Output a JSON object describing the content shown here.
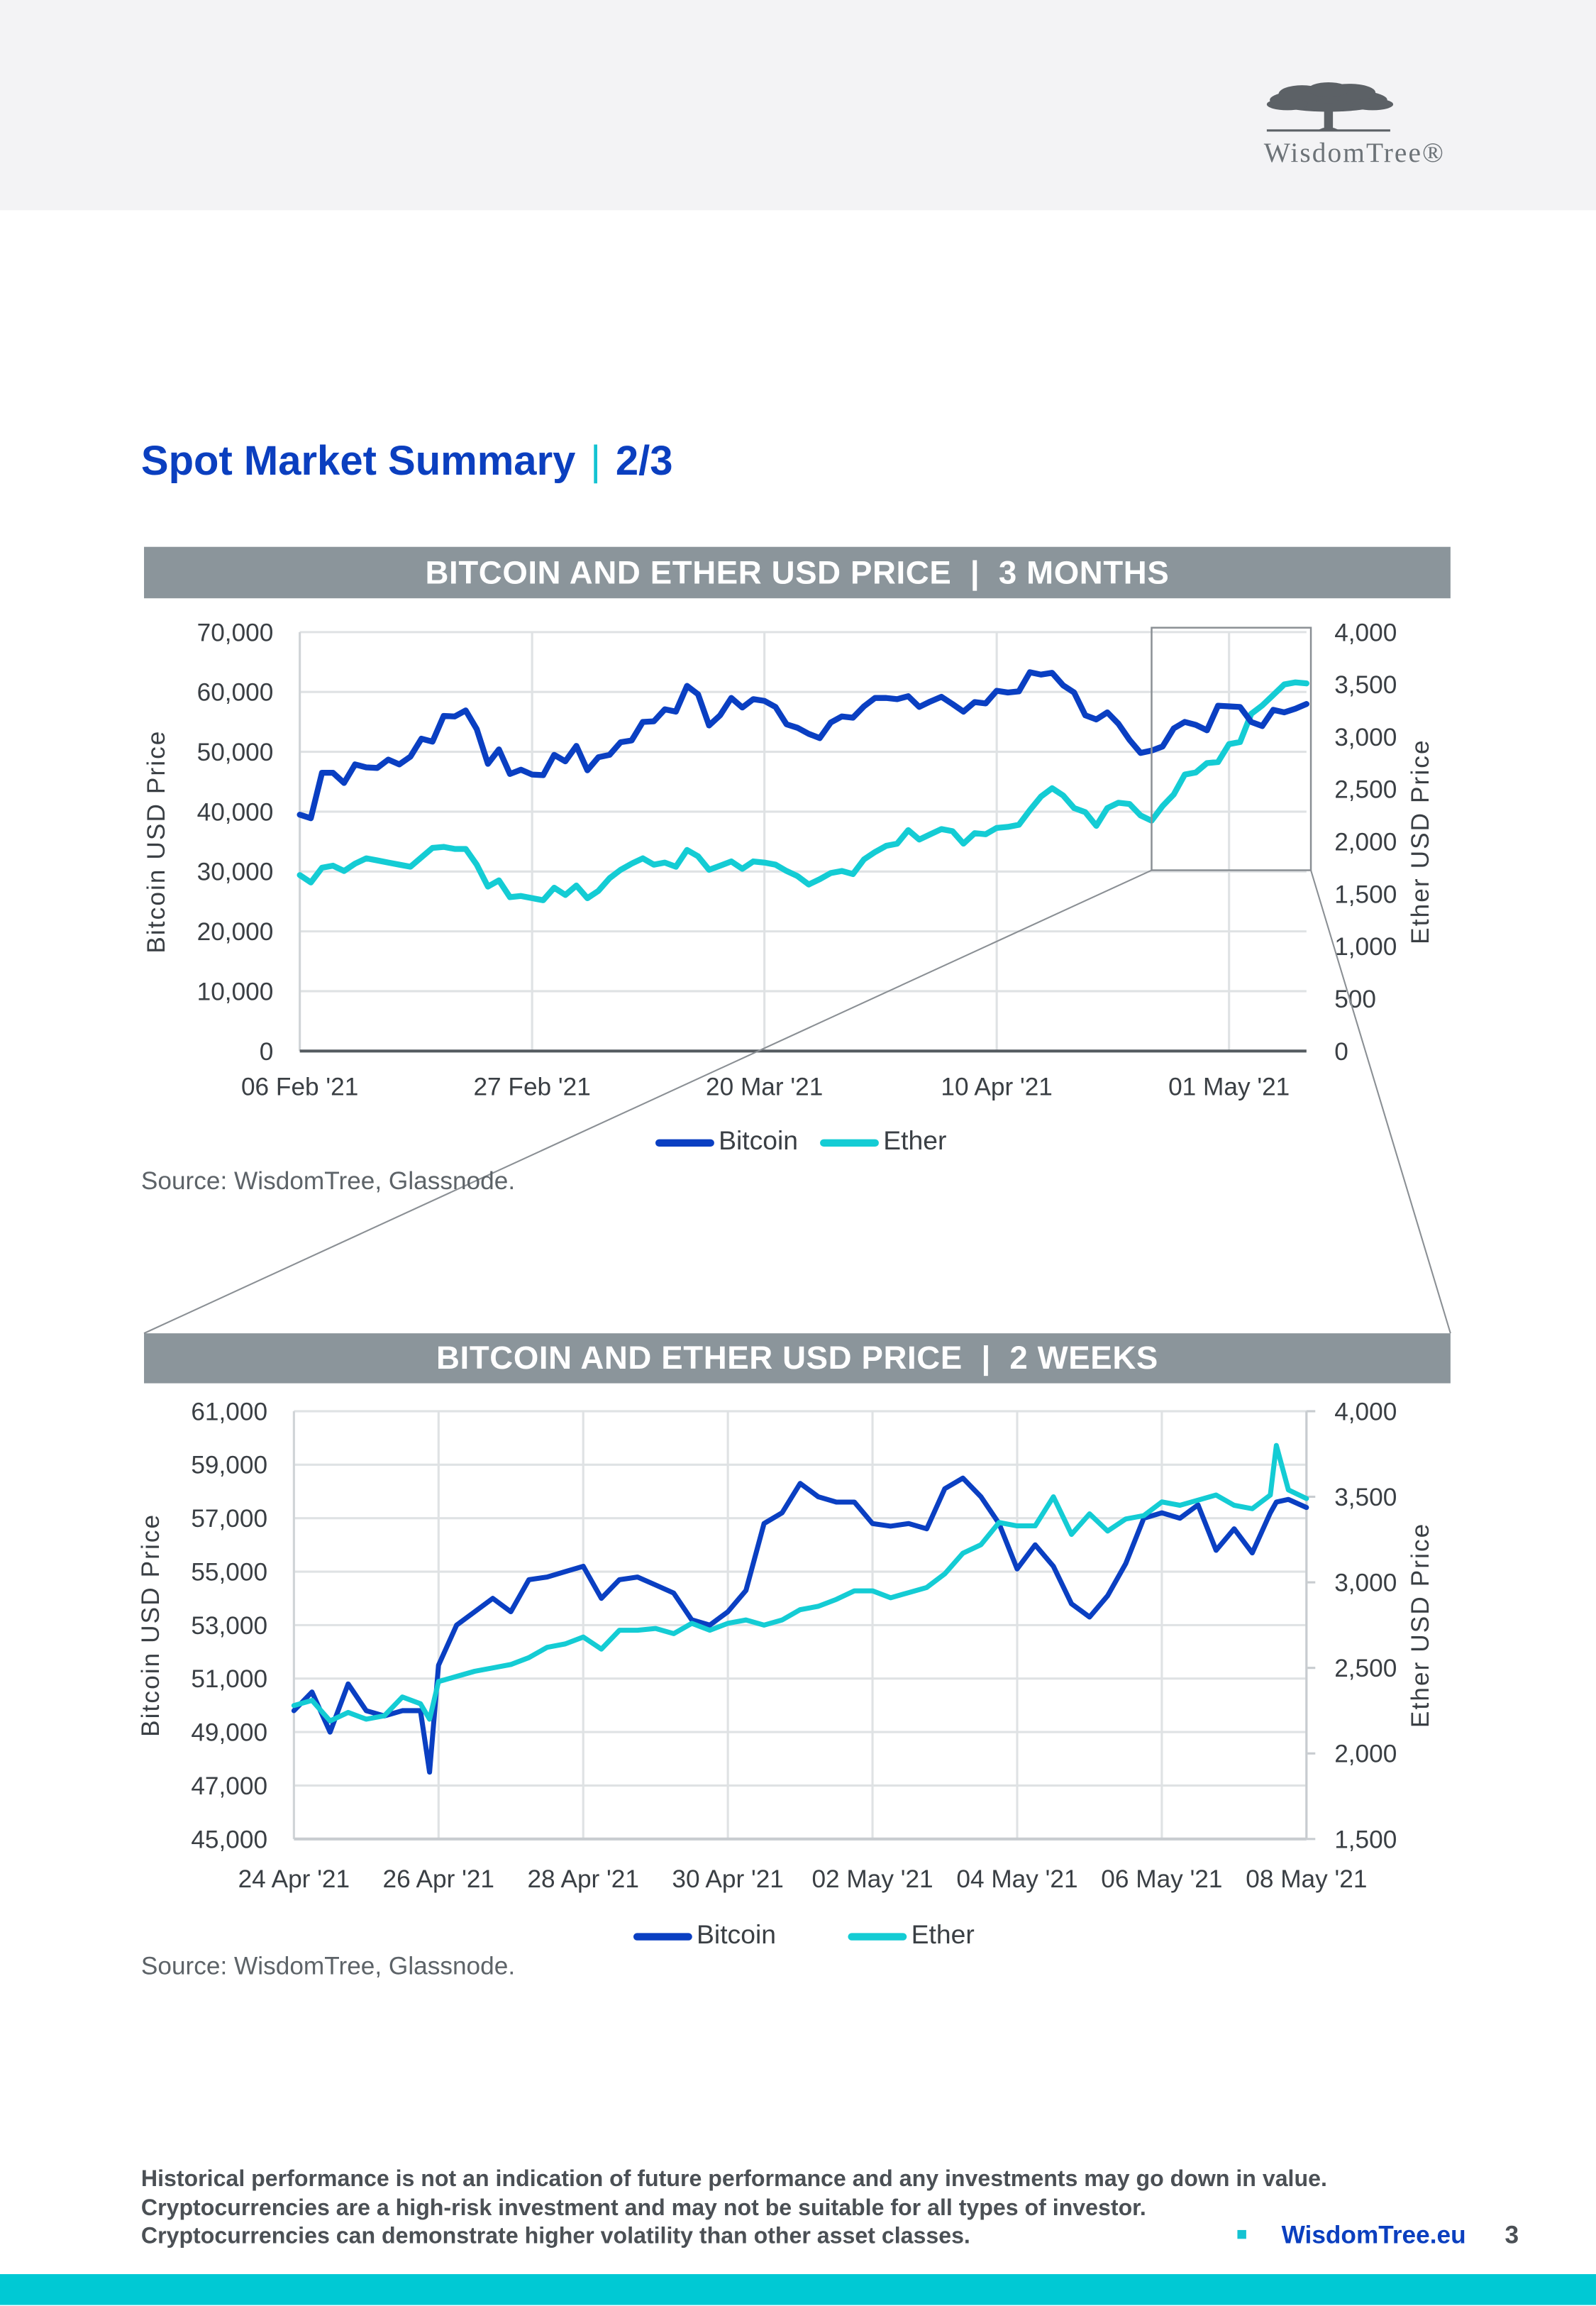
{
  "header": {
    "logo_text": "WisdomTree®",
    "logo_icon": "tree-icon"
  },
  "title": {
    "main": "Spot Market Summary",
    "separator": "|",
    "page": "2/3"
  },
  "colors": {
    "bitcoin": "#0a3fc2",
    "ether": "#14ccd4",
    "banner": "#8b959b",
    "accent": "#00c9d4",
    "title": "#0b3fbf"
  },
  "chart1": {
    "banner": "BITCOIN AND ETHER USD PRICE  |  3 MONTHS",
    "source": "Source: WisdomTree, Glassnode."
  },
  "chart2": {
    "banner": "BITCOIN AND ETHER USD PRICE  |  2 WEEKS",
    "source": "Source: WisdomTree, Glassnode."
  },
  "chart_data": [
    {
      "type": "line",
      "title": "BITCOIN AND ETHER USD PRICE | 3 MONTHS",
      "ylabel": "Bitcoin USD Price",
      "y2label": "Ether USD Price",
      "ylim": [
        0,
        70000
      ],
      "y2lim": [
        0,
        4000
      ],
      "yticks": [
        "0",
        "10,000",
        "20,000",
        "30,000",
        "40,000",
        "50,000",
        "60,000",
        "70,000"
      ],
      "y2ticks": [
        "0",
        "500",
        "1,000",
        "1,500",
        "2,000",
        "2,500",
        "3,000",
        "3,500",
        "4,000"
      ],
      "xticks": [
        {
          "value": "2021-02-06",
          "label": "06 Feb '21"
        },
        {
          "value": "2021-02-27",
          "label": "27 Feb '21"
        },
        {
          "value": "2021-03-20",
          "label": "20 Mar '21"
        },
        {
          "value": "2021-04-10",
          "label": "10 Apr '21"
        },
        {
          "value": "2021-05-01",
          "label": "01 May '21"
        }
      ],
      "xlim": [
        "2021-02-06",
        "2021-05-08"
      ],
      "grid": true,
      "legend": "bottom",
      "series": [
        {
          "name": "Bitcoin",
          "axis": "left"
        },
        {
          "name": "Ether",
          "axis": "right"
        }
      ],
      "zoom_window": {
        "from": "2021-04-24",
        "to": "2021-05-08"
      },
      "rows": [
        [
          "2021-02-06",
          39500,
          1680
        ],
        [
          "2021-02-07",
          38900,
          1610
        ],
        [
          "2021-02-08",
          46500,
          1750
        ],
        [
          "2021-02-09",
          46500,
          1770
        ],
        [
          "2021-02-10",
          44800,
          1720
        ],
        [
          "2021-02-11",
          47900,
          1790
        ],
        [
          "2021-02-12",
          47400,
          1840
        ],
        [
          "2021-02-13",
          47300,
          1820
        ],
        [
          "2021-02-14",
          48700,
          1800
        ],
        [
          "2021-02-15",
          47900,
          1780
        ],
        [
          "2021-02-16",
          49200,
          1760
        ],
        [
          "2021-02-17",
          52200,
          1850
        ],
        [
          "2021-02-18",
          51700,
          1940
        ],
        [
          "2021-02-19",
          56000,
          1950
        ],
        [
          "2021-02-20",
          55900,
          1930
        ],
        [
          "2021-02-21",
          56900,
          1930
        ],
        [
          "2021-02-22",
          53800,
          1780
        ],
        [
          "2021-02-23",
          48000,
          1570
        ],
        [
          "2021-02-24",
          50400,
          1630
        ],
        [
          "2021-02-25",
          46300,
          1470
        ],
        [
          "2021-02-26",
          47000,
          1480
        ],
        [
          "2021-02-27",
          46200,
          1460
        ],
        [
          "2021-02-28",
          46100,
          1440
        ],
        [
          "2021-03-01",
          49500,
          1560
        ],
        [
          "2021-03-02",
          48400,
          1490
        ],
        [
          "2021-03-03",
          51000,
          1580
        ],
        [
          "2021-03-04",
          46900,
          1460
        ],
        [
          "2021-03-05",
          49100,
          1530
        ],
        [
          "2021-03-06",
          49500,
          1650
        ],
        [
          "2021-03-07",
          51600,
          1730
        ],
        [
          "2021-03-08",
          51900,
          1790
        ],
        [
          "2021-03-09",
          55000,
          1840
        ],
        [
          "2021-03-10",
          55100,
          1780
        ],
        [
          "2021-03-11",
          57100,
          1800
        ],
        [
          "2021-03-12",
          56700,
          1760
        ],
        [
          "2021-03-13",
          61000,
          1920
        ],
        [
          "2021-03-14",
          59600,
          1860
        ],
        [
          "2021-03-15",
          54400,
          1730
        ],
        [
          "2021-03-16",
          56100,
          1770
        ],
        [
          "2021-03-17",
          59000,
          1810
        ],
        [
          "2021-03-18",
          57400,
          1740
        ],
        [
          "2021-03-19",
          58800,
          1810
        ],
        [
          "2021-03-20",
          58500,
          1800
        ],
        [
          "2021-03-21",
          57500,
          1780
        ],
        [
          "2021-03-22",
          54600,
          1720
        ],
        [
          "2021-03-23",
          54000,
          1670
        ],
        [
          "2021-03-24",
          53000,
          1590
        ],
        [
          "2021-03-25",
          52300,
          1640
        ],
        [
          "2021-03-26",
          54900,
          1700
        ],
        [
          "2021-03-27",
          55900,
          1720
        ],
        [
          "2021-03-28",
          55700,
          1690
        ],
        [
          "2021-03-29",
          57600,
          1830
        ],
        [
          "2021-03-30",
          59000,
          1900
        ],
        [
          "2021-03-31",
          59000,
          1960
        ],
        [
          "2021-04-01",
          58800,
          1980
        ],
        [
          "2021-04-02",
          59300,
          2110
        ],
        [
          "2021-04-03",
          57500,
          2020
        ],
        [
          "2021-04-04",
          58400,
          2070
        ],
        [
          "2021-04-05",
          59200,
          2120
        ],
        [
          "2021-04-06",
          58000,
          2100
        ],
        [
          "2021-04-07",
          56700,
          1980
        ],
        [
          "2021-04-08",
          58300,
          2080
        ],
        [
          "2021-04-09",
          58100,
          2070
        ],
        [
          "2021-04-10",
          60200,
          2130
        ],
        [
          "2021-04-11",
          59900,
          2140
        ],
        [
          "2021-04-12",
          60100,
          2160
        ],
        [
          "2021-04-13",
          63300,
          2300
        ],
        [
          "2021-04-14",
          62900,
          2430
        ],
        [
          "2021-04-15",
          63200,
          2510
        ],
        [
          "2021-04-16",
          61100,
          2440
        ],
        [
          "2021-04-17",
          59900,
          2320
        ],
        [
          "2021-04-18",
          56100,
          2280
        ],
        [
          "2021-04-19",
          55400,
          2150
        ],
        [
          "2021-04-20",
          56600,
          2320
        ],
        [
          "2021-04-21",
          54700,
          2370
        ],
        [
          "2021-04-22",
          52000,
          2360
        ],
        [
          "2021-04-23",
          49800,
          2250
        ],
        [
          "2021-04-24",
          50200,
          2200
        ],
        [
          "2021-04-25",
          50900,
          2340
        ],
        [
          "2021-04-26",
          53900,
          2450
        ],
        [
          "2021-04-27",
          55000,
          2640
        ],
        [
          "2021-04-28",
          54500,
          2660
        ],
        [
          "2021-04-29",
          53600,
          2750
        ],
        [
          "2021-04-30",
          57700,
          2760
        ],
        [
          "2021-05-01",
          57600,
          2930
        ],
        [
          "2021-05-02",
          57500,
          2950
        ],
        [
          "2021-05-03",
          55000,
          3220
        ],
        [
          "2021-05-04",
          54300,
          3300
        ],
        [
          "2021-05-05",
          57000,
          3400
        ],
        [
          "2021-05-06",
          56600,
          3500
        ],
        [
          "2021-05-07",
          57200,
          3520
        ],
        [
          "2021-05-08",
          58000,
          3510
        ]
      ]
    },
    {
      "type": "line",
      "title": "BITCOIN AND ETHER USD PRICE | 2 WEEKS",
      "ylabel": "Bitcoin USD Price",
      "y2label": "Ether USD Price",
      "ylim": [
        45000,
        61000
      ],
      "y2lim": [
        1500,
        4000
      ],
      "yticks": [
        "45,000",
        "47,000",
        "49,000",
        "51,000",
        "53,000",
        "55,000",
        "57,000",
        "59,000",
        "61,000"
      ],
      "y2ticks": [
        "1,500",
        "2,000",
        "2,500",
        "3,000",
        "3,500",
        "4,000"
      ],
      "xticks": [
        {
          "value": "2021-04-24T00:00",
          "label": "24 Apr '21"
        },
        {
          "value": "2021-04-26T00:00",
          "label": "26 Apr '21"
        },
        {
          "value": "2021-04-28T00:00",
          "label": "28 Apr '21"
        },
        {
          "value": "2021-04-30T00:00",
          "label": "30 Apr '21"
        },
        {
          "value": "2021-05-02T00:00",
          "label": "02 May '21"
        },
        {
          "value": "2021-05-04T00:00",
          "label": "04 May '21"
        },
        {
          "value": "2021-05-06T00:00",
          "label": "06 May '21"
        },
        {
          "value": "2021-05-08T00:00",
          "label": "08 May '21"
        }
      ],
      "xlim": [
        "2021-04-24T00:00",
        "2021-05-08T00:00"
      ],
      "grid": true,
      "legend": "bottom",
      "series": [
        {
          "name": "Bitcoin",
          "axis": "left"
        },
        {
          "name": "Ether",
          "axis": "right"
        }
      ],
      "rows": [
        [
          "2021-04-24T00:00",
          49800,
          2280
        ],
        [
          "2021-04-24T06:00",
          50500,
          2310
        ],
        [
          "2021-04-24T12:00",
          49000,
          2190
        ],
        [
          "2021-04-24T18:00",
          50800,
          2240
        ],
        [
          "2021-04-25T00:00",
          49800,
          2200
        ],
        [
          "2021-04-25T06:00",
          49600,
          2220
        ],
        [
          "2021-04-25T12:00",
          49800,
          2330
        ],
        [
          "2021-04-25T18:00",
          49800,
          2290
        ],
        [
          "2021-04-25T21:00",
          47500,
          2200
        ],
        [
          "2021-04-26T00:00",
          51500,
          2420
        ],
        [
          "2021-04-26T06:00",
          53000,
          2450
        ],
        [
          "2021-04-26T12:00",
          53500,
          2480
        ],
        [
          "2021-04-26T18:00",
          54000,
          2500
        ],
        [
          "2021-04-27T00:00",
          53500,
          2520
        ],
        [
          "2021-04-27T06:00",
          54700,
          2560
        ],
        [
          "2021-04-27T12:00",
          54800,
          2620
        ],
        [
          "2021-04-27T18:00",
          55000,
          2640
        ],
        [
          "2021-04-28T00:00",
          55200,
          2680
        ],
        [
          "2021-04-28T06:00",
          54000,
          2610
        ],
        [
          "2021-04-28T12:00",
          54700,
          2720
        ],
        [
          "2021-04-28T18:00",
          54800,
          2720
        ],
        [
          "2021-04-29T00:00",
          54500,
          2730
        ],
        [
          "2021-04-29T06:00",
          54200,
          2700
        ],
        [
          "2021-04-29T12:00",
          53200,
          2760
        ],
        [
          "2021-04-29T18:00",
          53000,
          2720
        ],
        [
          "2021-04-30T00:00",
          53500,
          2760
        ],
        [
          "2021-04-30T06:00",
          54300,
          2780
        ],
        [
          "2021-04-30T12:00",
          56800,
          2750
        ],
        [
          "2021-04-30T18:00",
          57200,
          2780
        ],
        [
          "2021-05-01T00:00",
          58300,
          2840
        ],
        [
          "2021-05-01T06:00",
          57800,
          2860
        ],
        [
          "2021-05-01T12:00",
          57600,
          2900
        ],
        [
          "2021-05-01T18:00",
          57600,
          2950
        ],
        [
          "2021-05-02T00:00",
          56800,
          2950
        ],
        [
          "2021-05-02T06:00",
          56700,
          2910
        ],
        [
          "2021-05-02T12:00",
          56800,
          2940
        ],
        [
          "2021-05-02T18:00",
          56600,
          2970
        ],
        [
          "2021-05-03T00:00",
          58100,
          3050
        ],
        [
          "2021-05-03T06:00",
          58500,
          3170
        ],
        [
          "2021-05-03T12:00",
          57800,
          3220
        ],
        [
          "2021-05-03T18:00",
          56800,
          3350
        ],
        [
          "2021-05-04T00:00",
          55100,
          3330
        ],
        [
          "2021-05-04T06:00",
          56000,
          3330
        ],
        [
          "2021-05-04T12:00",
          55200,
          3500
        ],
        [
          "2021-05-04T18:00",
          53800,
          3280
        ],
        [
          "2021-05-05T00:00",
          53300,
          3400
        ],
        [
          "2021-05-05T06:00",
          54100,
          3300
        ],
        [
          "2021-05-05T12:00",
          55300,
          3370
        ],
        [
          "2021-05-05T18:00",
          57000,
          3390
        ],
        [
          "2021-05-06T00:00",
          57200,
          3470
        ],
        [
          "2021-05-06T06:00",
          57000,
          3450
        ],
        [
          "2021-05-06T12:00",
          57500,
          3480
        ],
        [
          "2021-05-06T18:00",
          55800,
          3510
        ],
        [
          "2021-05-07T00:00",
          56600,
          3450
        ],
        [
          "2021-05-07T06:00",
          55700,
          3430
        ],
        [
          "2021-05-07T12:00",
          57200,
          3510
        ],
        [
          "2021-05-07T14:00",
          57600,
          3800
        ],
        [
          "2021-05-07T18:00",
          57700,
          3540
        ],
        [
          "2021-05-08T00:00",
          57400,
          3490
        ]
      ]
    }
  ],
  "footer": {
    "disclaimer": [
      "Historical performance is not an indication of future performance and any investments may go down in value.",
      "Cryptocurrencies are a high-risk investment and may not be suitable for all types of investor.",
      "Cryptocurrencies can demonstrate higher volatility than other asset classes."
    ],
    "link": "WisdomTree.eu",
    "page_number": "3"
  }
}
